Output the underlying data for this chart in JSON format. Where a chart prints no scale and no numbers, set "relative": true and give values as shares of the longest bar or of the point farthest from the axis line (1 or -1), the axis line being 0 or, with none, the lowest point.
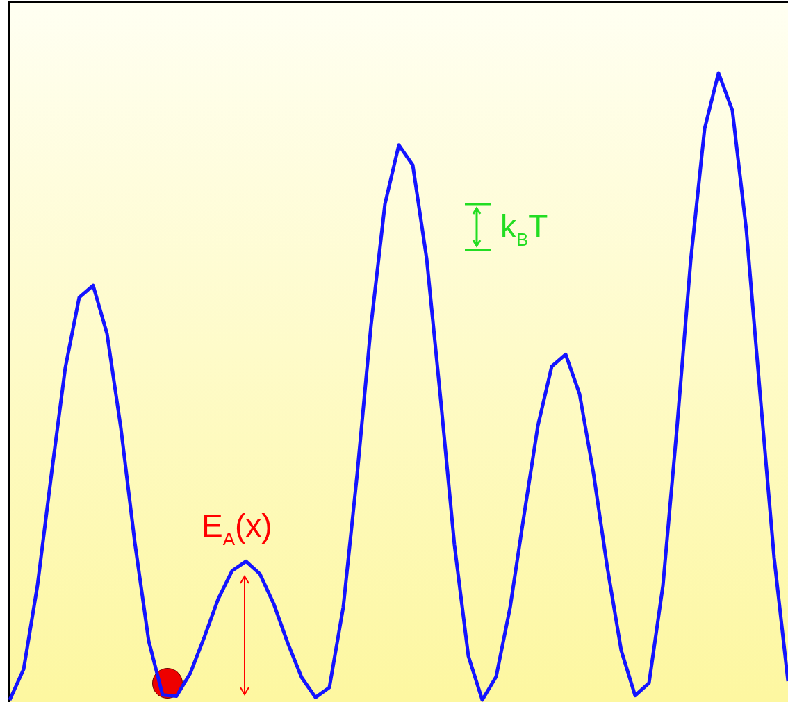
{
  "chart_data": {
    "type": "line",
    "relative": true,
    "marker": "none",
    "line_style": "solid",
    "categories": [
      null,
      null,
      null,
      null,
      null,
      null,
      null,
      null,
      null,
      null,
      null,
      null,
      null,
      null,
      null,
      null,
      null,
      null,
      null,
      null,
      null,
      null,
      null,
      null,
      null,
      null,
      null,
      null,
      null,
      null,
      null,
      null,
      null,
      null,
      null,
      null,
      null,
      null,
      null,
      null,
      null,
      null,
      null,
      null,
      null,
      null,
      null,
      null,
      null,
      null,
      null,
      null,
      null,
      null,
      null,
      null,
      null
    ],
    "series": [
      {
        "color": "#1414ff",
        "values": [
          0,
          0.049,
          0.183,
          0.36,
          0.53,
          0.642,
          0.661,
          0.584,
          0.433,
          0.251,
          0.094,
          0.008,
          0.006,
          0.043,
          0.1,
          0.161,
          0.206,
          0.221,
          0.201,
          0.153,
          0.091,
          0.036,
          0.004,
          0.02,
          0.148,
          0.36,
          0.598,
          0.791,
          0.885,
          0.853,
          0.704,
          0.481,
          0.247,
          0.07,
          0,
          0.037,
          0.147,
          0.294,
          0.437,
          0.532,
          0.551,
          0.488,
          0.362,
          0.211,
          0.079,
          0.007,
          0.027,
          0.182,
          0.431,
          0.701,
          0.911,
          1,
          0.94,
          0.75,
          0.486,
          0.227,
          0.03
        ]
      }
    ],
    "annotations": [
      "E$_{A}$(x)",
      "k$_{B}$T"
    ]
  }
}
